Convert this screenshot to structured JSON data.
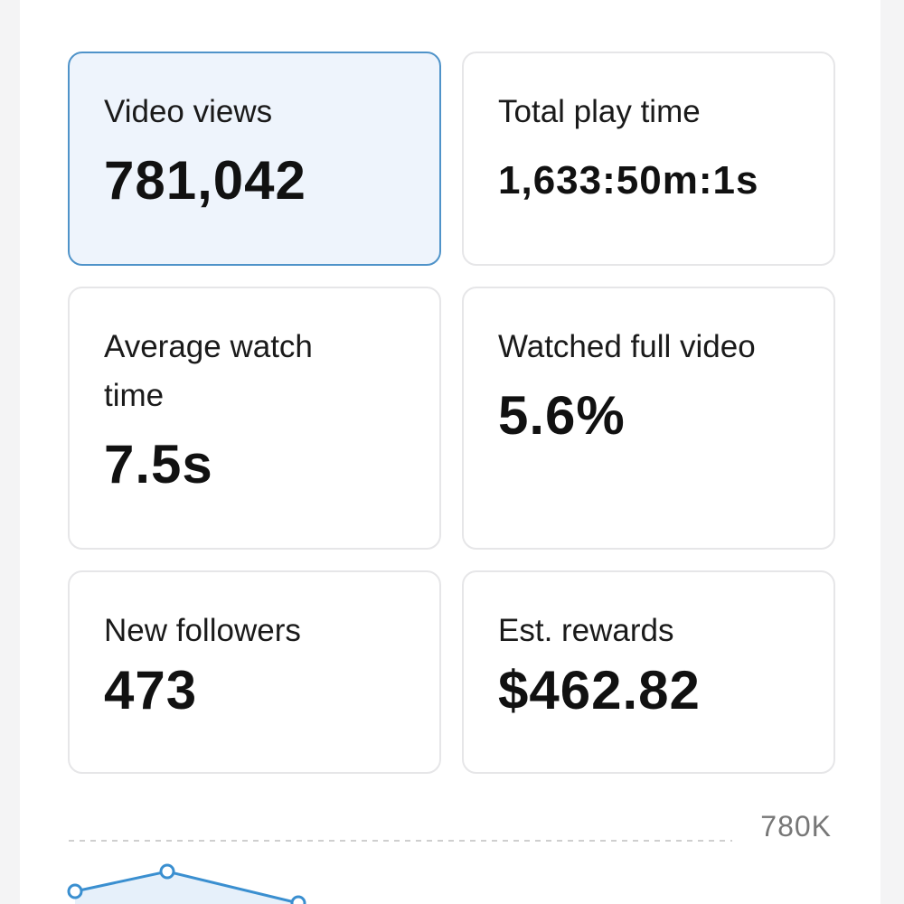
{
  "cards": [
    {
      "label": "Video views",
      "value": "781,042",
      "selected": true
    },
    {
      "label": "Total play time",
      "value": "1,633:50m:1s"
    },
    {
      "label": "Average watch time",
      "value": "7.5s"
    },
    {
      "label": "Watched full video",
      "value": "5.6%"
    },
    {
      "label": "New followers",
      "value": "473"
    },
    {
      "label": "Est. rewards",
      "value": "$462.82"
    }
  ],
  "chart": {
    "tick_label": "780K"
  }
}
